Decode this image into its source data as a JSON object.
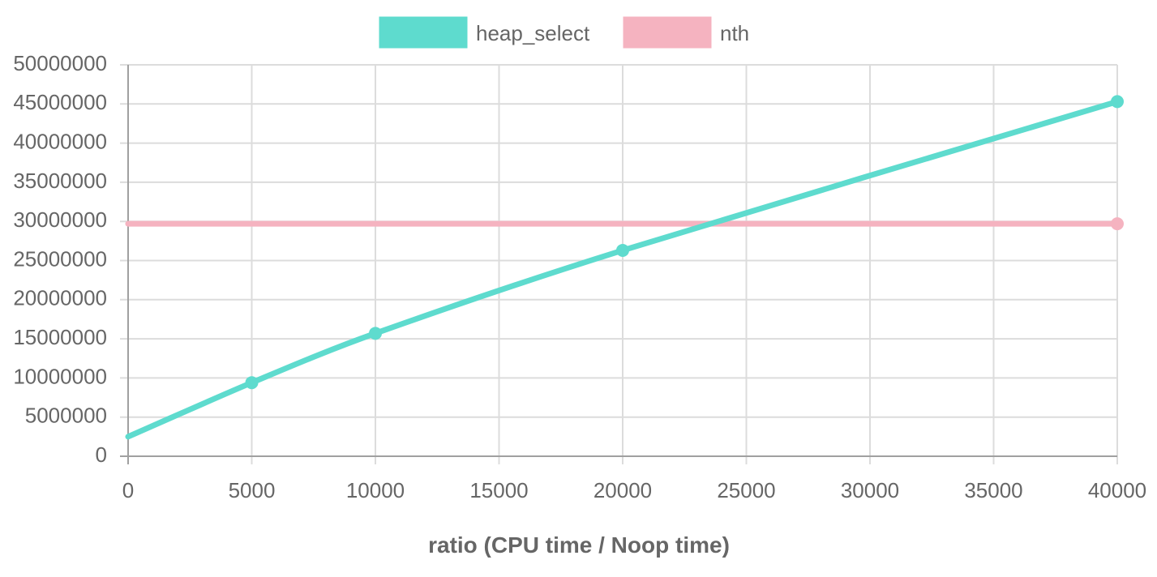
{
  "chart_data": {
    "type": "line",
    "xlabel": "ratio (CPU time / Noop time)",
    "ylabel": "",
    "xlim": [
      0,
      40000
    ],
    "ylim": [
      0,
      50000000
    ],
    "x_ticks": [
      0,
      5000,
      10000,
      15000,
      20000,
      25000,
      30000,
      35000,
      40000
    ],
    "y_ticks": [
      0,
      5000000,
      10000000,
      15000000,
      20000000,
      25000000,
      30000000,
      35000000,
      40000000,
      45000000,
      50000000
    ],
    "grid": true,
    "legend_position": "top",
    "series": [
      {
        "name": "heap_select",
        "color": "#5edbce",
        "x": [
          0,
          5000,
          10000,
          20000,
          40000
        ],
        "y": [
          2500000,
          9400000,
          15700000,
          26300000,
          45300000
        ],
        "markers": [
          false,
          true,
          true,
          true,
          true
        ]
      },
      {
        "name": "nth",
        "color": "#f5b3c0",
        "x": [
          0,
          40000
        ],
        "y": [
          29700000,
          29700000
        ],
        "markers": [
          false,
          true
        ]
      }
    ]
  }
}
